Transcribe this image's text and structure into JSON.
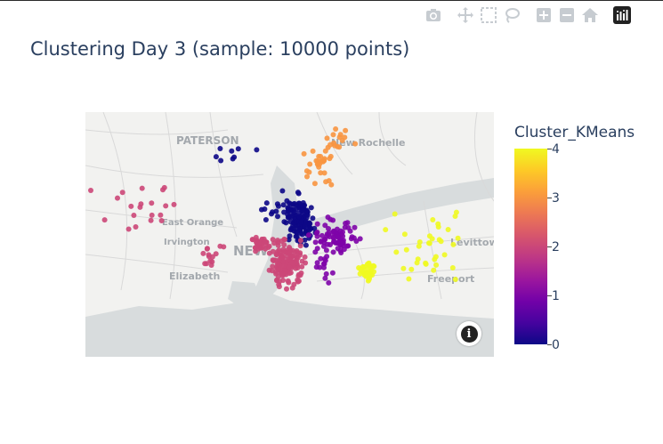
{
  "modebar": {
    "icons": [
      "camera-icon",
      "pan-icon",
      "box-select-icon",
      "lasso-select-icon",
      "zoom-in-icon",
      "zoom-out-icon",
      "reset-home-icon",
      "plotly-logo-icon"
    ]
  },
  "plot": {
    "title": "Clustering Day 3 (sample: 10000 points)"
  },
  "map": {
    "place_labels": [
      "PATERSON",
      "New Rochelle",
      "East Orange",
      "Irvington",
      "Elizabeth",
      "Freeport",
      "Levittown",
      "NEW"
    ],
    "colors": {
      "land": "#f2f2f0",
      "water": "#d8dcdd",
      "roads": "#dadada"
    }
  },
  "colorbar": {
    "title": "Cluster_KMeans",
    "ticks": [
      "0",
      "1",
      "2",
      "3",
      "4"
    ]
  },
  "chart_data": {
    "type": "scatter",
    "title": "Clustering Day 3 (sample: 10000 points)",
    "colorscale": [
      "#0d0887",
      "#46039f",
      "#7201a8",
      "#9c179e",
      "#bd3786",
      "#d8576b",
      "#ed7953",
      "#fb9f3a",
      "#fdca26",
      "#f0f921"
    ],
    "cluster_colors": {
      "0": "#0d0887",
      "1": "#7e03a8",
      "2": "#cc4778",
      "3": "#f89540",
      "4": "#f0f921"
    },
    "color_range": [
      0,
      4
    ]
  }
}
